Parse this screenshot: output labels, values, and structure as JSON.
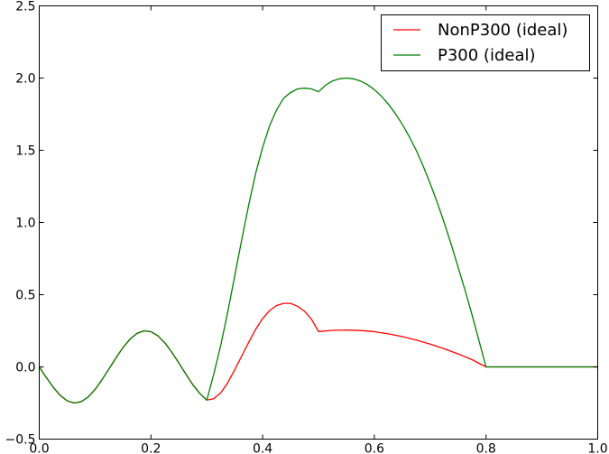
{
  "chart_data": {
    "type": "line",
    "title": "",
    "xlabel": "",
    "ylabel": "",
    "xlim": [
      0.0,
      1.0
    ],
    "ylim": [
      -0.5,
      2.5
    ],
    "xticks": [
      "0.0",
      "0.2",
      "0.4",
      "0.6",
      "0.8",
      "1.0"
    ],
    "yticks": [
      "−0.5",
      "0.0",
      "0.5",
      "1.0",
      "1.5",
      "2.0",
      "2.5"
    ],
    "grid": false,
    "legend": {
      "placement": "top-right"
    },
    "series": [
      {
        "name": "NonP300 (ideal)",
        "color": "#ff0000",
        "points": [
          [
            0.0,
            0.0
          ],
          [
            0.0125,
            -0.073
          ],
          [
            0.025,
            -0.141
          ],
          [
            0.0375,
            -0.197
          ],
          [
            0.05,
            -0.235
          ],
          [
            0.0625,
            -0.25
          ],
          [
            0.075,
            -0.241
          ],
          [
            0.0875,
            -0.209
          ],
          [
            0.1,
            -0.156
          ],
          [
            0.1125,
            -0.088
          ],
          [
            0.125,
            -0.013
          ],
          [
            0.1375,
            0.063
          ],
          [
            0.15,
            0.134
          ],
          [
            0.1625,
            0.192
          ],
          [
            0.175,
            0.232
          ],
          [
            0.1875,
            0.25
          ],
          [
            0.2,
            0.244
          ],
          [
            0.2125,
            0.215
          ],
          [
            0.225,
            0.166
          ],
          [
            0.2375,
            0.101
          ],
          [
            0.25,
            0.027
          ],
          [
            0.2625,
            -0.05
          ],
          [
            0.275,
            -0.123
          ],
          [
            0.2875,
            -0.184
          ],
          [
            0.3,
            -0.23
          ],
          [
            0.3125,
            -0.22
          ],
          [
            0.325,
            -0.18
          ],
          [
            0.3375,
            -0.11
          ],
          [
            0.35,
            -0.02
          ],
          [
            0.3625,
            0.075
          ],
          [
            0.375,
            0.17
          ],
          [
            0.3875,
            0.26
          ],
          [
            0.4,
            0.335
          ],
          [
            0.4125,
            0.39
          ],
          [
            0.425,
            0.425
          ],
          [
            0.4375,
            0.44
          ],
          [
            0.45,
            0.44
          ],
          [
            0.4625,
            0.42
          ],
          [
            0.475,
            0.385
          ],
          [
            0.4875,
            0.33
          ],
          [
            0.5,
            0.245
          ],
          [
            0.525,
            0.253
          ],
          [
            0.55,
            0.255
          ],
          [
            0.575,
            0.252
          ],
          [
            0.6,
            0.244
          ],
          [
            0.625,
            0.229
          ],
          [
            0.65,
            0.21
          ],
          [
            0.675,
            0.186
          ],
          [
            0.7,
            0.158
          ],
          [
            0.725,
            0.126
          ],
          [
            0.75,
            0.09
          ],
          [
            0.775,
            0.05
          ],
          [
            0.8,
            0.0
          ],
          [
            0.85,
            0.0
          ],
          [
            0.9,
            0.0
          ],
          [
            0.95,
            0.0
          ],
          [
            1.0,
            0.0
          ]
        ]
      },
      {
        "name": "P300 (ideal)",
        "color": "#008000",
        "points": [
          [
            0.0,
            0.0
          ],
          [
            0.0125,
            -0.073
          ],
          [
            0.025,
            -0.141
          ],
          [
            0.0375,
            -0.197
          ],
          [
            0.05,
            -0.235
          ],
          [
            0.0625,
            -0.25
          ],
          [
            0.075,
            -0.241
          ],
          [
            0.0875,
            -0.209
          ],
          [
            0.1,
            -0.156
          ],
          [
            0.1125,
            -0.088
          ],
          [
            0.125,
            -0.013
          ],
          [
            0.1375,
            0.063
          ],
          [
            0.15,
            0.134
          ],
          [
            0.1625,
            0.192
          ],
          [
            0.175,
            0.232
          ],
          [
            0.1875,
            0.25
          ],
          [
            0.2,
            0.244
          ],
          [
            0.2125,
            0.215
          ],
          [
            0.225,
            0.166
          ],
          [
            0.2375,
            0.101
          ],
          [
            0.25,
            0.027
          ],
          [
            0.2625,
            -0.05
          ],
          [
            0.275,
            -0.123
          ],
          [
            0.2875,
            -0.184
          ],
          [
            0.3,
            -0.23
          ],
          [
            0.3125,
            -0.05
          ],
          [
            0.325,
            0.15
          ],
          [
            0.3375,
            0.38
          ],
          [
            0.35,
            0.63
          ],
          [
            0.3625,
            0.88
          ],
          [
            0.375,
            1.12
          ],
          [
            0.3875,
            1.34
          ],
          [
            0.4,
            1.52
          ],
          [
            0.4125,
            1.67
          ],
          [
            0.425,
            1.78
          ],
          [
            0.4375,
            1.86
          ],
          [
            0.45,
            1.9
          ],
          [
            0.4625,
            1.925
          ],
          [
            0.475,
            1.93
          ],
          [
            0.4875,
            1.925
          ],
          [
            0.5,
            1.905
          ],
          [
            0.5125,
            1.95
          ],
          [
            0.525,
            1.98
          ],
          [
            0.5375,
            1.995
          ],
          [
            0.55,
            2.0
          ],
          [
            0.5625,
            1.995
          ],
          [
            0.575,
            1.98
          ],
          [
            0.5875,
            1.955
          ],
          [
            0.6,
            1.92
          ],
          [
            0.6125,
            1.875
          ],
          [
            0.625,
            1.82
          ],
          [
            0.6375,
            1.755
          ],
          [
            0.65,
            1.68
          ],
          [
            0.6625,
            1.595
          ],
          [
            0.675,
            1.5
          ],
          [
            0.6875,
            1.39
          ],
          [
            0.7,
            1.27
          ],
          [
            0.7125,
            1.14
          ],
          [
            0.725,
            1.0
          ],
          [
            0.7375,
            0.85
          ],
          [
            0.75,
            0.69
          ],
          [
            0.7625,
            0.53
          ],
          [
            0.775,
            0.36
          ],
          [
            0.7875,
            0.18
          ],
          [
            0.8,
            0.0
          ],
          [
            0.85,
            0.0
          ],
          [
            0.9,
            0.0
          ],
          [
            0.95,
            0.0
          ],
          [
            1.0,
            0.0
          ]
        ]
      }
    ]
  }
}
